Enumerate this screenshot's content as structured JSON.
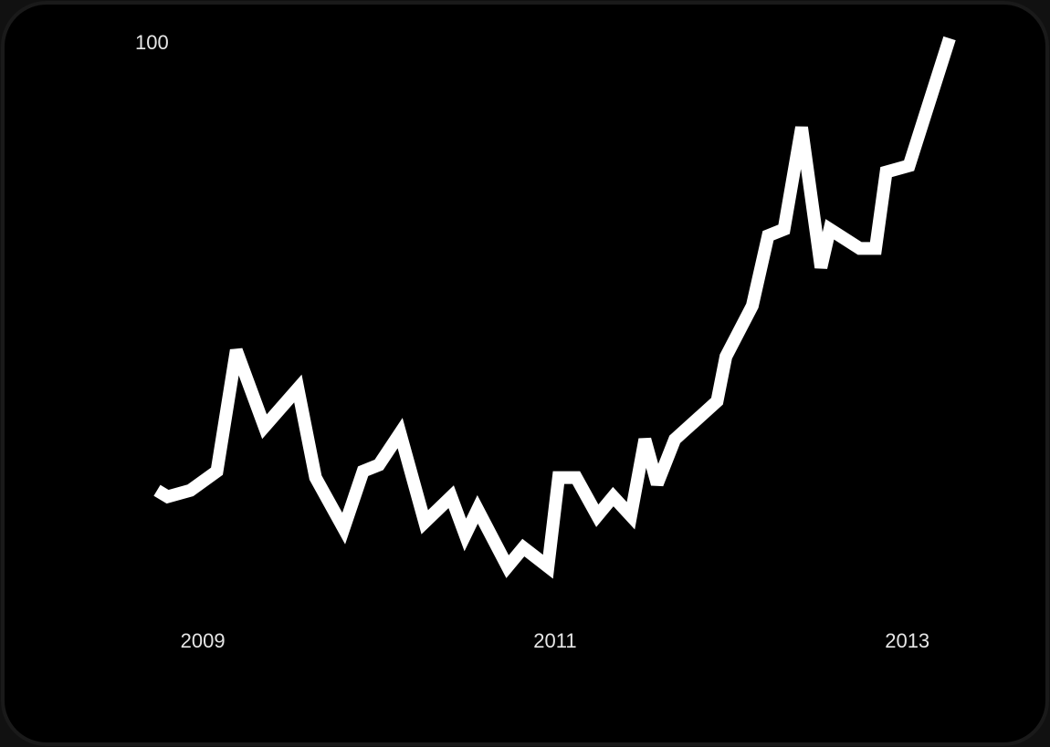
{
  "chart_data": {
    "type": "line",
    "x": [
      2008.74,
      2008.8,
      2008.93,
      2009.08,
      2009.19,
      2009.35,
      2009.54,
      2009.64,
      2009.8,
      2009.91,
      2010.0,
      2010.12,
      2010.26,
      2010.41,
      2010.49,
      2010.56,
      2010.73,
      2010.82,
      2010.96,
      2011.02,
      2011.12,
      2011.24,
      2011.33,
      2011.43,
      2011.51,
      2011.58,
      2011.68,
      2011.92,
      2011.97,
      2012.12,
      2012.21,
      2012.3,
      2012.4,
      2012.51,
      2012.56,
      2012.73,
      2012.82,
      2012.88,
      2013.01,
      2013.24
    ],
    "series": [
      {
        "color": "#ffffff",
        "values": [
          29,
          28,
          29,
          32,
          51,
          39,
          45,
          31,
          23,
          32,
          33,
          38,
          24,
          28,
          22,
          26,
          17,
          20,
          17,
          31,
          31,
          25,
          28,
          25,
          37,
          30,
          37,
          43,
          50,
          58,
          69,
          70,
          86,
          64,
          70,
          67,
          67,
          79,
          80,
          100
        ]
      }
    ],
    "xlim": [
      2008.74,
      2013.24
    ],
    "xticks": [
      2009,
      2011,
      2013
    ],
    "ylim": [
      0,
      100
    ],
    "yticks": [
      100
    ],
    "grid": false
  }
}
